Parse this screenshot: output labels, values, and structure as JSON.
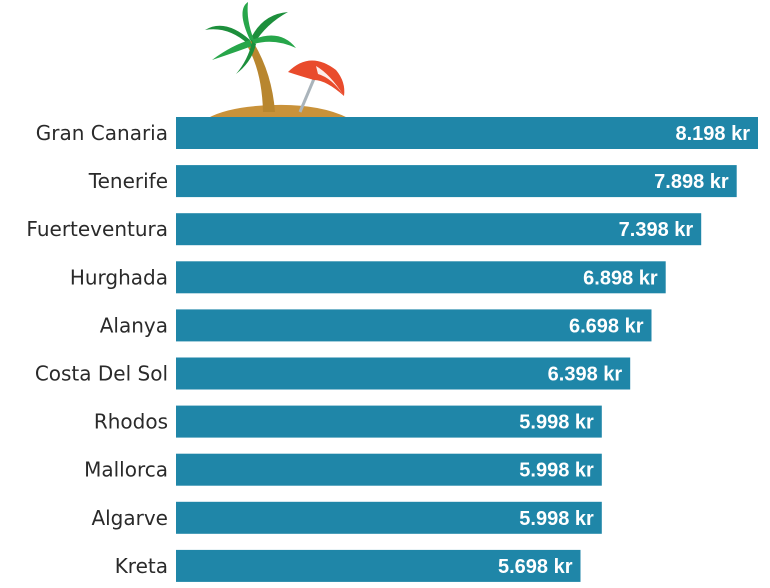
{
  "chart_data": {
    "type": "bar",
    "orientation": "horizontal",
    "title": "",
    "xlabel": "",
    "ylabel": "",
    "categories": [
      "Gran Canaria",
      "Tenerife",
      "Fuerteventura",
      "Hurghada",
      "Alanya",
      "Costa Del Sol",
      "Rhodos",
      "Mallorca",
      "Algarve",
      "Kreta"
    ],
    "values": [
      8198,
      7898,
      7398,
      6898,
      6698,
      6398,
      5998,
      5998,
      5998,
      5698
    ],
    "value_labels": [
      "8.198 kr",
      "7.898 kr",
      "7.398 kr",
      "6.898 kr",
      "6.698 kr",
      "6.398 kr",
      "5.998 kr",
      "5.998 kr",
      "5.998 kr",
      "5.698 kr"
    ],
    "bar_color": "#1f86a8",
    "grid": false,
    "legend": "none",
    "decoration": "beach-palm-umbrella-icon"
  }
}
